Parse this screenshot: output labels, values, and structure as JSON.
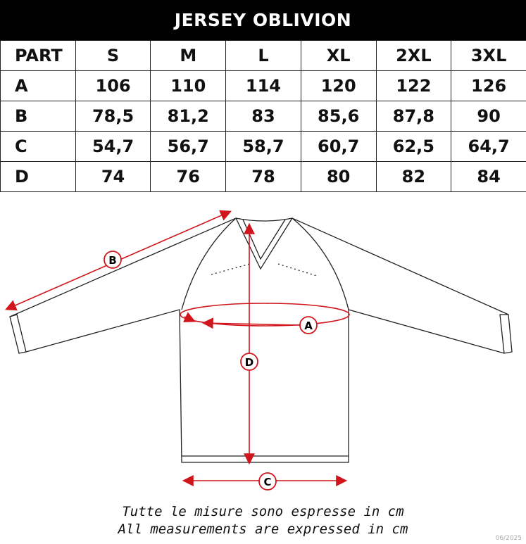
{
  "title": "JERSEY OBLIVION",
  "table": {
    "headers": [
      "PART",
      "S",
      "M",
      "L",
      "XL",
      "2XL",
      "3XL"
    ],
    "rows": [
      [
        "A",
        "106",
        "110",
        "114",
        "120",
        "122",
        "126"
      ],
      [
        "B",
        "78,5",
        "81,2",
        "83",
        "85,6",
        "87,8",
        "90"
      ],
      [
        "C",
        "54,7",
        "56,7",
        "58,7",
        "60,7",
        "62,5",
        "64,7"
      ],
      [
        "D",
        "74",
        "76",
        "78",
        "80",
        "82",
        "84"
      ]
    ]
  },
  "diagram": {
    "labels": {
      "a": "A",
      "b": "B",
      "c": "C",
      "d": "D"
    },
    "accent": "#d0161c"
  },
  "notes": {
    "it": "Tutte le misure sono espresse in cm",
    "en": "All measurements are expressed in cm"
  },
  "date": "06/2025"
}
